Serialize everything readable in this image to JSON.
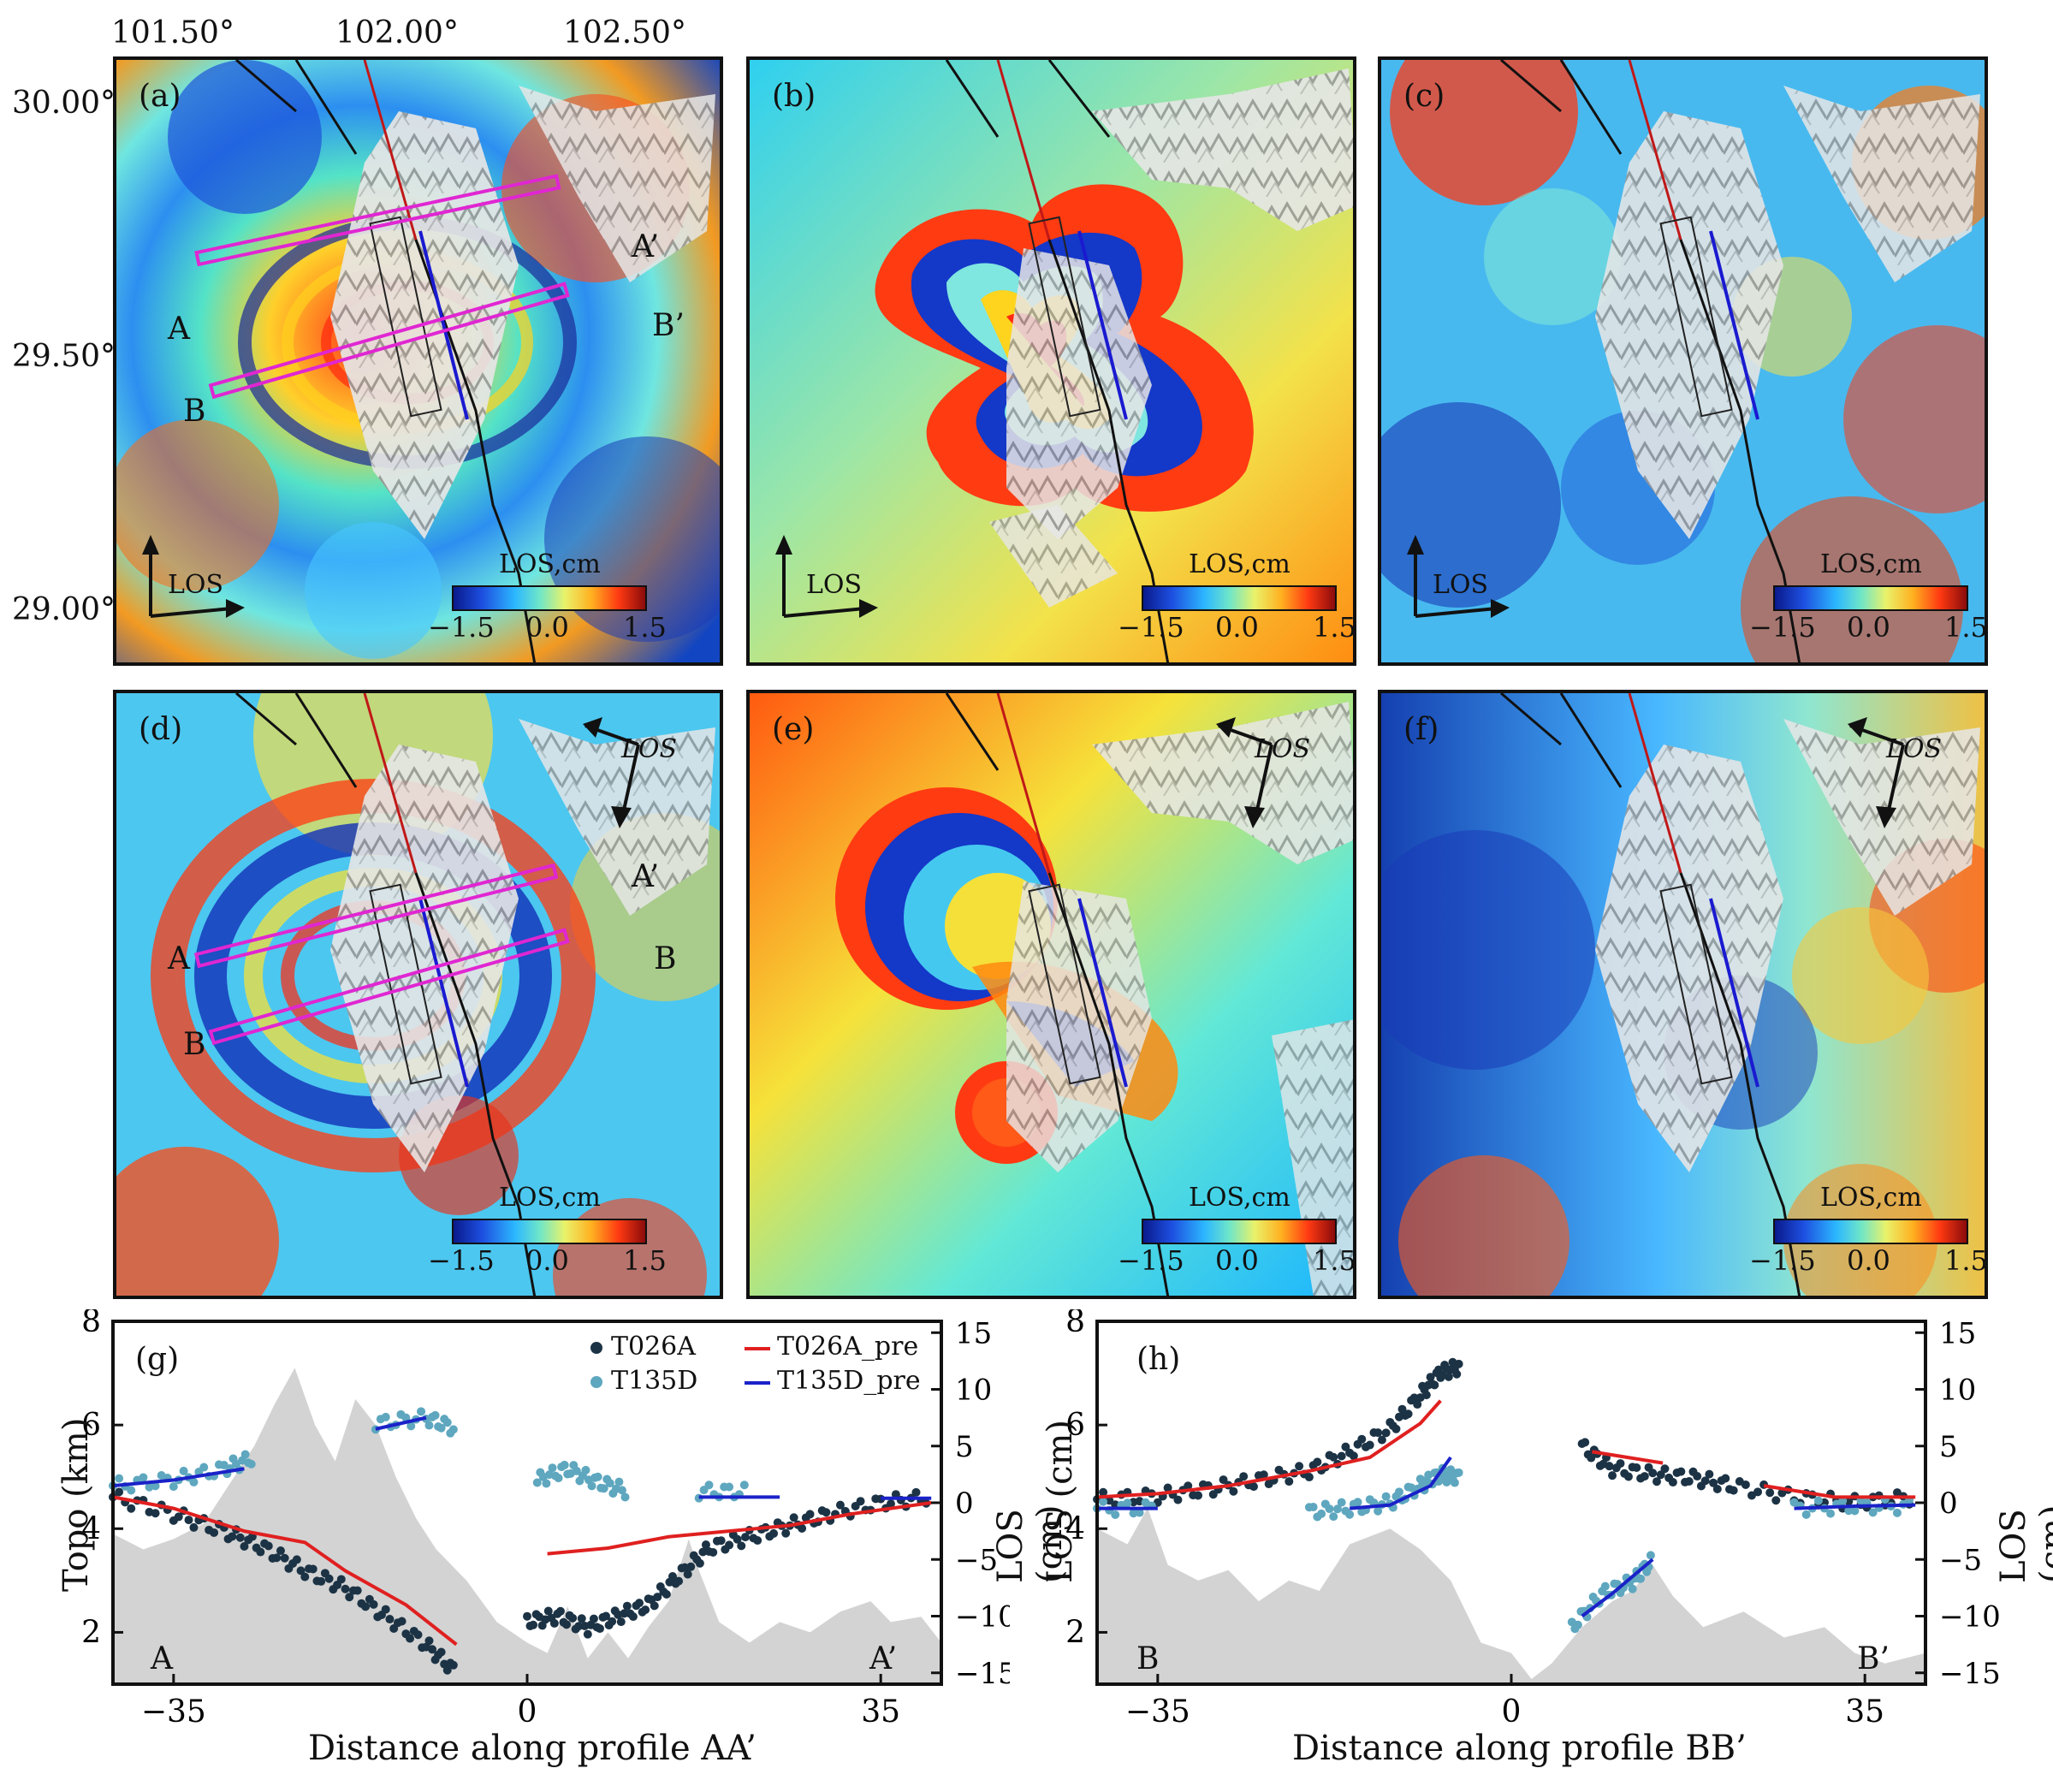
{
  "map_axes": {
    "lon_ticks": [
      "101.50°",
      "102.00°",
      "102.50°"
    ],
    "lat_ticks": [
      "30.00°",
      "29.50°",
      "29.00°"
    ]
  },
  "panels": [
    {
      "id": "a",
      "label": "(a)",
      "los_label": "LOS",
      "colorbar": {
        "title": "LOS,cm",
        "ticks": [
          "−1.5",
          "0.0",
          "1.5"
        ]
      },
      "profile_labels": {
        "A": "A",
        "A2": "A’",
        "B": "B",
        "B2": "B’"
      }
    },
    {
      "id": "b",
      "label": "(b)",
      "los_label": "LOS",
      "colorbar": {
        "title": "LOS,cm",
        "ticks": [
          "−1.5",
          "0.0",
          "1.5"
        ]
      }
    },
    {
      "id": "c",
      "label": "(c)",
      "los_label": "LOS",
      "colorbar": {
        "title": "LOS,cm",
        "ticks": [
          "−1.5",
          "0.0",
          "1.5"
        ]
      }
    },
    {
      "id": "d",
      "label": "(d)",
      "los_label": "LOS",
      "colorbar": {
        "title": "LOS,cm",
        "ticks": [
          "−1.5",
          "0.0",
          "1.5"
        ]
      },
      "profile_labels": {
        "A": "A",
        "A2": "A’",
        "B": "B",
        "B2": "B"
      }
    },
    {
      "id": "e",
      "label": "(e)",
      "los_label": "LOS",
      "colorbar": {
        "title": "LOS,cm",
        "ticks": [
          "−1.5",
          "0.0",
          "1.5"
        ]
      }
    },
    {
      "id": "f",
      "label": "(f)",
      "los_label": "LOS",
      "colorbar": {
        "title": "LOS,cm",
        "ticks": [
          "−1.5",
          "0.0",
          "1.5"
        ]
      }
    }
  ],
  "chart_data": [
    {
      "type": "scatter",
      "label": "(g)",
      "xlabel": "Distance along profile AA’",
      "ylabel_left": "Topo (km)",
      "ylabel_right": "LOS (cm)",
      "xlim": [
        -41,
        41
      ],
      "ylim_left": [
        1,
        8
      ],
      "ylim_right": [
        -16,
        16
      ],
      "xticks": [
        "−35",
        "0",
        "35"
      ],
      "yticks_left": [
        "2",
        "4",
        "6",
        "8"
      ],
      "yticks_right": [
        "−15",
        "−10",
        "−5",
        "0",
        "5",
        "10",
        "15"
      ],
      "end_labels": [
        "A",
        "A’"
      ],
      "legend": [
        "T026A",
        "T026A_pre",
        "T135D",
        "T135D_pre"
      ],
      "colors": {
        "T026A": "#1c3345",
        "T135D": "#5ea7bf",
        "T026A_pre": "#e02020",
        "T135D_pre": "#1a22c8",
        "topo": "#d3d3d3"
      },
      "topo_km": [
        [
          -41,
          3.9
        ],
        [
          -38,
          3.6
        ],
        [
          -35,
          3.8
        ],
        [
          -32,
          4.1
        ],
        [
          -29,
          5.0
        ],
        [
          -27,
          5.6
        ],
        [
          -25,
          6.4
        ],
        [
          -23,
          7.1
        ],
        [
          -21,
          6.0
        ],
        [
          -19,
          5.3
        ],
        [
          -17,
          6.5
        ],
        [
          -15,
          6.0
        ],
        [
          -13,
          5.0
        ],
        [
          -11,
          4.2
        ],
        [
          -9,
          3.6
        ],
        [
          -6,
          3.0
        ],
        [
          -3,
          2.2
        ],
        [
          0,
          1.8
        ],
        [
          2,
          1.6
        ],
        [
          4,
          2.5
        ],
        [
          6,
          1.5
        ],
        [
          8,
          2.0
        ],
        [
          10,
          1.5
        ],
        [
          12,
          2.1
        ],
        [
          14,
          2.6
        ],
        [
          16,
          3.8
        ],
        [
          17,
          3.2
        ],
        [
          19,
          2.2
        ],
        [
          22,
          1.8
        ],
        [
          25,
          2.2
        ],
        [
          28,
          2.0
        ],
        [
          31,
          2.4
        ],
        [
          34,
          2.6
        ],
        [
          36,
          2.2
        ],
        [
          39,
          2.3
        ],
        [
          41,
          1.8
        ]
      ],
      "T026A": [
        [
          -41,
          0.5
        ],
        [
          -35,
          -1
        ],
        [
          -30,
          -2.5
        ],
        [
          -26,
          -4
        ],
        [
          -22,
          -6
        ],
        [
          -18,
          -7.5
        ],
        [
          -14,
          -10
        ],
        [
          -10,
          -12.5
        ],
        [
          -7,
          -15
        ],
        [
          0,
          -10.5
        ],
        [
          3,
          -10
        ],
        [
          6,
          -11
        ],
        [
          9,
          -10
        ],
        [
          12,
          -9
        ],
        [
          15,
          -6.5
        ],
        [
          18,
          -4
        ],
        [
          22,
          -3
        ],
        [
          26,
          -2
        ],
        [
          30,
          -1
        ],
        [
          35,
          0
        ],
        [
          40,
          0.5
        ]
      ],
      "T026A_pre": [
        [
          -41,
          0.5
        ],
        [
          -35,
          -0.5
        ],
        [
          -28,
          -2.5
        ],
        [
          -22,
          -3.5
        ],
        [
          -18,
          -6
        ],
        [
          -12,
          -9
        ],
        [
          -7,
          -12.5
        ],
        [
          2,
          -4.5
        ],
        [
          8,
          -4
        ],
        [
          14,
          -3
        ],
        [
          20,
          -2.5
        ],
        [
          26,
          -2
        ],
        [
          32,
          -1
        ],
        [
          40,
          0
        ]
      ],
      "T135D": [
        [
          -41,
          1.5
        ],
        [
          -35,
          2
        ],
        [
          -30,
          3
        ],
        [
          -27,
          4
        ],
        [
          -15,
          7
        ],
        [
          -10,
          7.5
        ],
        [
          -7,
          6.5
        ],
        [
          1,
          2
        ],
        [
          4,
          3
        ],
        [
          7,
          1.8
        ],
        [
          10,
          1
        ],
        [
          17,
          1
        ],
        [
          22,
          1
        ],
        [
          30,
          0.5
        ],
        [
          40,
          0.3
        ]
      ],
      "T135D_pre": [
        [
          -41,
          1.5
        ],
        [
          -35,
          2
        ],
        [
          -28,
          3
        ],
        [
          -15,
          6.5
        ],
        [
          -10,
          7.5
        ],
        [
          17,
          0.5
        ],
        [
          25,
          0.5
        ],
        [
          35,
          0.4
        ],
        [
          40,
          0.4
        ]
      ]
    },
    {
      "type": "scatter",
      "label": "(h)",
      "xlabel": "Distance along profile BB’",
      "ylabel_left": "LOS (cm)",
      "ylabel_right": "LOS (cm)",
      "xlim": [
        -41,
        41
      ],
      "ylim_left": [
        1,
        8
      ],
      "ylim_right": [
        -16,
        16
      ],
      "xticks": [
        "−35",
        "0",
        "35"
      ],
      "yticks_left": [
        "2",
        "4",
        "6",
        "8"
      ],
      "yticks_right": [
        "−15",
        "−10",
        "−5",
        "0",
        "5",
        "10",
        "15"
      ],
      "end_labels": [
        "B",
        "B’"
      ],
      "colors": {
        "T026A": "#1c3345",
        "T135D": "#5ea7bf",
        "T026A_pre": "#e02020",
        "T135D_pre": "#1a22c8",
        "topo": "#d3d3d3"
      },
      "topo_km": [
        [
          -41,
          4.0
        ],
        [
          -38,
          3.7
        ],
        [
          -36,
          4.4
        ],
        [
          -34,
          3.3
        ],
        [
          -31,
          3.0
        ],
        [
          -28,
          3.2
        ],
        [
          -25,
          2.6
        ],
        [
          -22,
          3.0
        ],
        [
          -19,
          2.8
        ],
        [
          -16,
          3.7
        ],
        [
          -12,
          4.0
        ],
        [
          -9,
          3.6
        ],
        [
          -6,
          3.0
        ],
        [
          -3,
          1.8
        ],
        [
          0,
          1.6
        ],
        [
          2,
          1.1
        ],
        [
          4,
          1.4
        ],
        [
          7,
          2.1
        ],
        [
          10,
          2.6
        ],
        [
          12,
          2.8
        ],
        [
          14,
          3.3
        ],
        [
          16,
          2.7
        ],
        [
          19,
          2.1
        ],
        [
          23,
          2.4
        ],
        [
          27,
          1.9
        ],
        [
          31,
          2.1
        ],
        [
          34,
          1.6
        ],
        [
          37,
          1.4
        ],
        [
          41,
          1.6
        ]
      ],
      "T026A": [
        [
          -41,
          0.3
        ],
        [
          -35,
          0.6
        ],
        [
          -30,
          1.2
        ],
        [
          -25,
          2
        ],
        [
          -20,
          2.8
        ],
        [
          -16,
          4.5
        ],
        [
          -12,
          6.5
        ],
        [
          -9,
          9.5
        ],
        [
          -7,
          11.5
        ],
        [
          -5,
          12
        ],
        [
          7,
          5
        ],
        [
          10,
          3
        ],
        [
          14,
          2.5
        ],
        [
          18,
          2.2
        ],
        [
          22,
          1.5
        ],
        [
          28,
          0.5
        ],
        [
          34,
          0
        ],
        [
          40,
          0.5
        ]
      ],
      "T026A_pre": [
        [
          -41,
          0.5
        ],
        [
          -35,
          0.8
        ],
        [
          -28,
          1.5
        ],
        [
          -20,
          2.8
        ],
        [
          -14,
          4
        ],
        [
          -9,
          7
        ],
        [
          -7,
          9
        ],
        [
          8,
          4.5
        ],
        [
          15,
          3.5
        ],
        [
          25,
          1.5
        ],
        [
          32,
          0.5
        ],
        [
          40,
          0.5
        ]
      ],
      "T135D": [
        [
          -41,
          -0.5
        ],
        [
          -35,
          -0.5
        ],
        [
          -27,
          -1
        ],
        [
          -20,
          -0.8
        ],
        [
          -16,
          -0.5
        ],
        [
          -12,
          0
        ],
        [
          -9,
          1.5
        ],
        [
          -7,
          2.5
        ],
        [
          -5,
          2.2
        ],
        [
          6,
          -11
        ],
        [
          9,
          -8
        ],
        [
          12,
          -7
        ],
        [
          14,
          -5
        ],
        [
          28,
          -0.5
        ],
        [
          34,
          -0.3
        ],
        [
          40,
          -0.3
        ]
      ],
      "T135D_pre": [
        [
          -41,
          -0.5
        ],
        [
          -35,
          -0.5
        ],
        [
          -25,
          -0.8
        ],
        [
          -16,
          -0.5
        ],
        [
          -12,
          -0.2
        ],
        [
          -8,
          1.5
        ],
        [
          -6,
          4
        ],
        [
          7,
          -10
        ],
        [
          10,
          -8
        ],
        [
          14,
          -5
        ],
        [
          28,
          -0.5
        ],
        [
          34,
          -0.3
        ],
        [
          40,
          -0.2
        ]
      ]
    }
  ]
}
